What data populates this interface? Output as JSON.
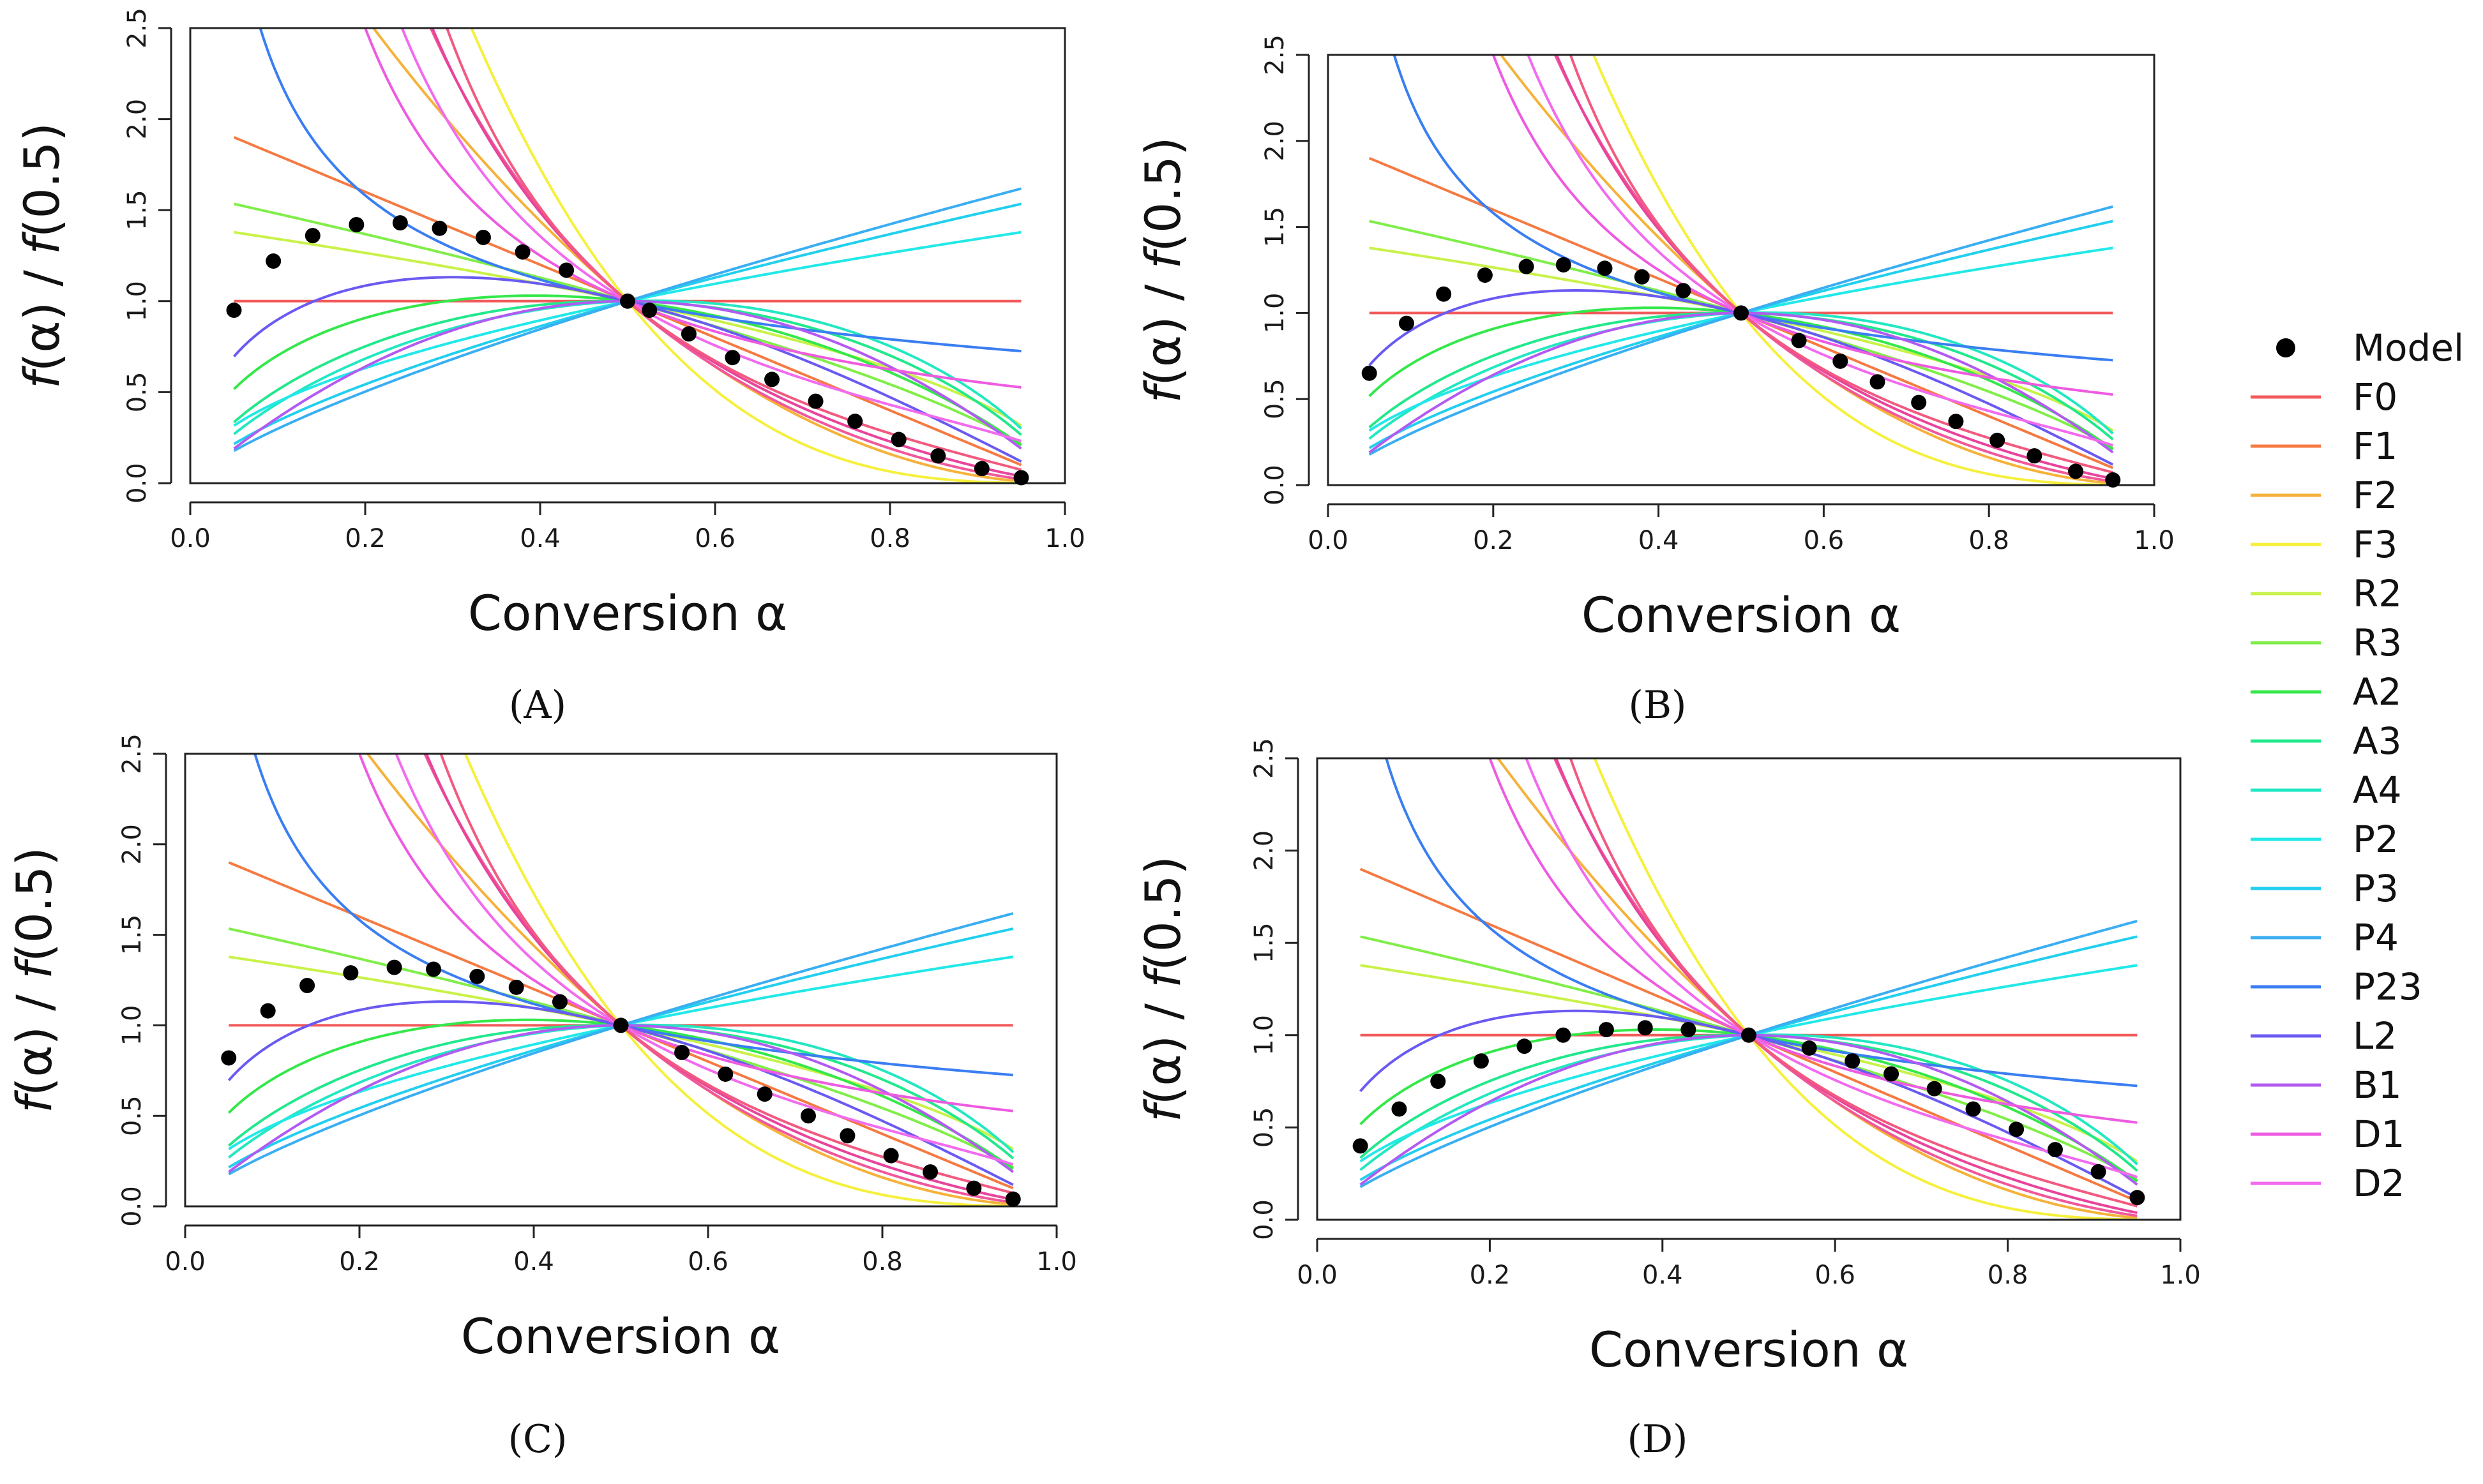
{
  "legend": {
    "model_label": "Model",
    "entries": [
      {
        "name": "F0",
        "color": "#f25a5a"
      },
      {
        "name": "F1",
        "color": "#f57a42"
      },
      {
        "name": "F2",
        "color": "#f5b23a"
      },
      {
        "name": "F3",
        "color": "#f5f03c"
      },
      {
        "name": "R2",
        "color": "#c8f248"
      },
      {
        "name": "R3",
        "color": "#80ee48"
      },
      {
        "name": "A2",
        "color": "#34e84a"
      },
      {
        "name": "A3",
        "color": "#22e88c"
      },
      {
        "name": "A4",
        "color": "#22e8c2"
      },
      {
        "name": "P2",
        "color": "#22e8e8"
      },
      {
        "name": "P3",
        "color": "#22cfee"
      },
      {
        "name": "P4",
        "color": "#3aaef2"
      },
      {
        "name": "P23",
        "color": "#3a7ef2"
      },
      {
        "name": "L2",
        "color": "#6a5af2"
      },
      {
        "name": "B1",
        "color": "#b25af2"
      },
      {
        "name": "D1",
        "color": "#ee5ae0"
      },
      {
        "name": "D2",
        "color": "#f26aee"
      }
    ]
  },
  "chart_data": [
    {
      "type": "line",
      "panel": "(A)",
      "xlabel": "Conversion α",
      "ylabel_parts": [
        "f",
        "(α) / ",
        "f",
        "(0.5)"
      ],
      "xlim": [
        0.0,
        1.0
      ],
      "ylim": [
        0.0,
        2.5
      ],
      "xticks": [
        "0.0",
        "0.2",
        "0.4",
        "0.6",
        "0.8",
        "1.0"
      ],
      "yticks": [
        "0.0",
        "0.5",
        "1.0",
        "1.5",
        "2.0",
        "2.5"
      ],
      "model_points": {
        "x": [
          0.05,
          0.095,
          0.14,
          0.19,
          0.24,
          0.285,
          0.335,
          0.38,
          0.43,
          0.5,
          0.525,
          0.57,
          0.62,
          0.665,
          0.715,
          0.76,
          0.81,
          0.855,
          0.905,
          0.95
        ],
        "y": [
          0.95,
          1.22,
          1.36,
          1.42,
          1.43,
          1.4,
          1.35,
          1.27,
          1.17,
          1.0,
          0.95,
          0.82,
          0.69,
          0.57,
          0.45,
          0.34,
          0.24,
          0.15,
          0.08,
          0.03
        ]
      }
    },
    {
      "type": "line",
      "panel": "(B)",
      "xlabel": "Conversion α",
      "ylabel_parts": [
        "f",
        "(α) / ",
        "f",
        "(0.5)"
      ],
      "xlim": [
        0.0,
        1.0
      ],
      "ylim": [
        0.0,
        2.5
      ],
      "xticks": [
        "0.0",
        "0.2",
        "0.4",
        "0.6",
        "0.8",
        "1.0"
      ],
      "yticks": [
        "0.0",
        "0.5",
        "1.0",
        "1.5",
        "2.0",
        "2.5"
      ],
      "model_points": {
        "x": [
          0.05,
          0.095,
          0.14,
          0.19,
          0.24,
          0.285,
          0.335,
          0.38,
          0.43,
          0.5,
          0.57,
          0.62,
          0.665,
          0.715,
          0.76,
          0.81,
          0.855,
          0.905,
          0.95
        ],
        "y": [
          0.65,
          0.94,
          1.11,
          1.22,
          1.27,
          1.28,
          1.26,
          1.21,
          1.13,
          1.0,
          0.84,
          0.72,
          0.6,
          0.48,
          0.37,
          0.26,
          0.17,
          0.08,
          0.03
        ]
      }
    },
    {
      "type": "line",
      "panel": "(C)",
      "xlabel": "Conversion α",
      "ylabel_parts": [
        "f",
        "(α) / ",
        "f",
        "(0.5)"
      ],
      "xlim": [
        0.0,
        1.0
      ],
      "ylim": [
        0.0,
        2.5
      ],
      "xticks": [
        "0.0",
        "0.2",
        "0.4",
        "0.6",
        "0.8",
        "1.0"
      ],
      "yticks": [
        "0.0",
        "0.5",
        "1.0",
        "1.5",
        "2.0",
        "2.5"
      ],
      "model_points": {
        "x": [
          0.05,
          0.095,
          0.14,
          0.19,
          0.24,
          0.285,
          0.335,
          0.38,
          0.43,
          0.5,
          0.57,
          0.62,
          0.665,
          0.715,
          0.76,
          0.81,
          0.855,
          0.905,
          0.95
        ],
        "y": [
          0.82,
          1.08,
          1.22,
          1.29,
          1.32,
          1.31,
          1.27,
          1.21,
          1.13,
          1.0,
          0.85,
          0.73,
          0.62,
          0.5,
          0.39,
          0.28,
          0.19,
          0.1,
          0.04
        ]
      }
    },
    {
      "type": "line",
      "panel": "(D)",
      "xlabel": "Conversion α",
      "ylabel_parts": [
        "f",
        "(α) / ",
        "f",
        "(0.5)"
      ],
      "xlim": [
        0.0,
        1.0
      ],
      "ylim": [
        0.0,
        2.5
      ],
      "xticks": [
        "0.0",
        "0.2",
        "0.4",
        "0.6",
        "0.8",
        "1.0"
      ],
      "yticks": [
        "0.0",
        "0.5",
        "1.0",
        "1.5",
        "2.0",
        "2.5"
      ],
      "model_points": {
        "x": [
          0.05,
          0.095,
          0.14,
          0.19,
          0.24,
          0.285,
          0.335,
          0.38,
          0.43,
          0.5,
          0.57,
          0.62,
          0.665,
          0.715,
          0.76,
          0.81,
          0.855,
          0.905,
          0.95
        ],
        "y": [
          0.4,
          0.6,
          0.75,
          0.86,
          0.94,
          1.0,
          1.03,
          1.04,
          1.03,
          1.0,
          0.93,
          0.86,
          0.79,
          0.71,
          0.6,
          0.49,
          0.38,
          0.26,
          0.12
        ]
      }
    }
  ]
}
